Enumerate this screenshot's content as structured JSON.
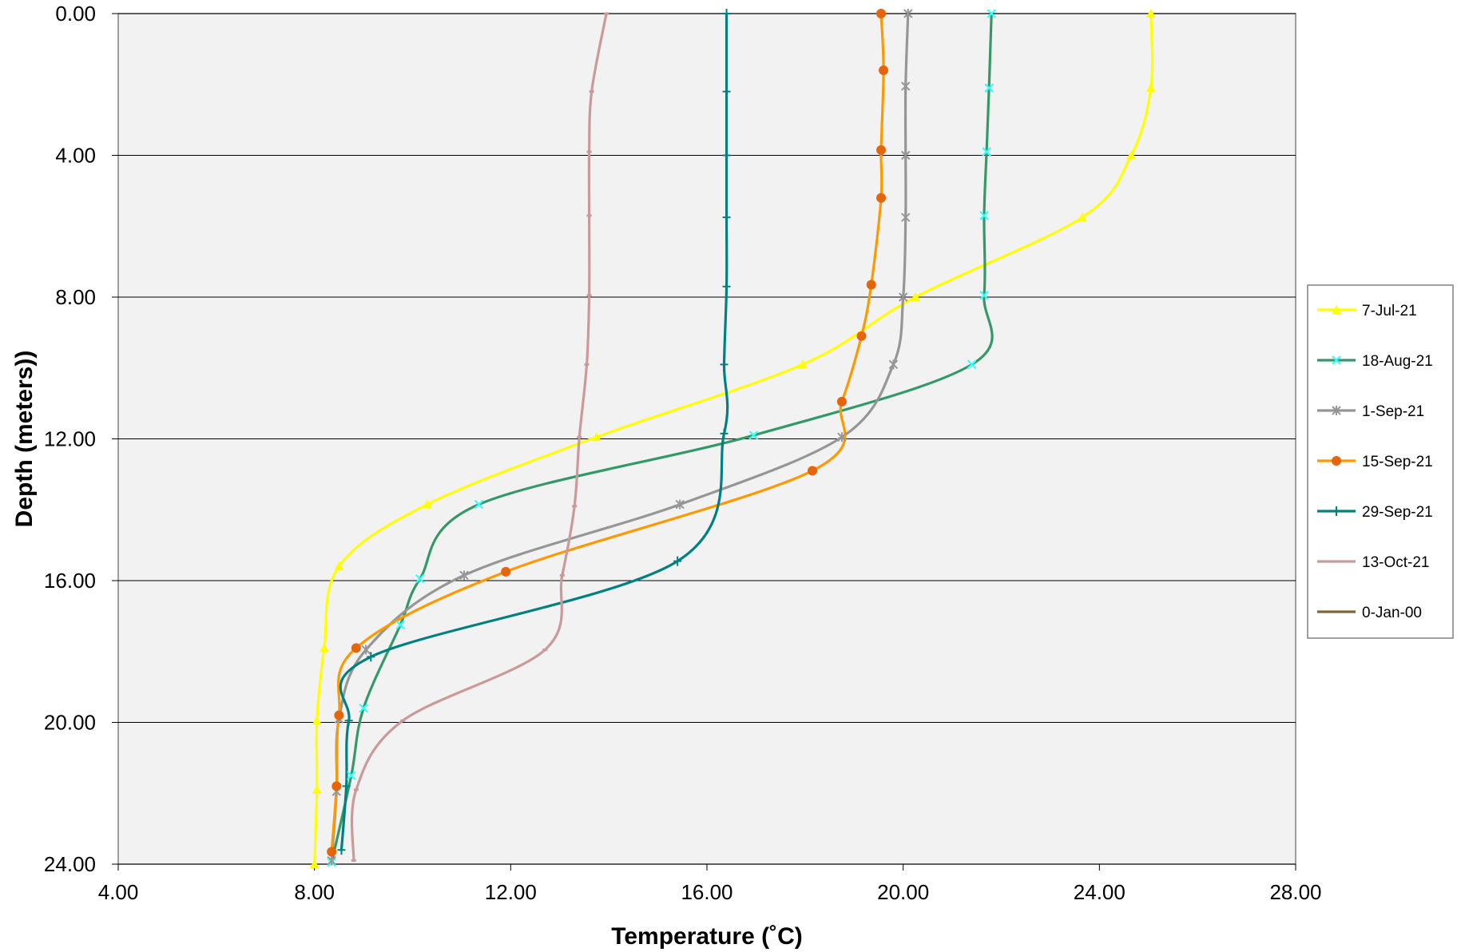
{
  "chart_data": {
    "type": "line",
    "title": "",
    "xlabel": "Temperature (˚C)",
    "ylabel": "Depth (meters))",
    "xlim": [
      4,
      28
    ],
    "ylim": [
      0,
      24
    ],
    "y_inverted": true,
    "x_ticks": [
      4,
      8,
      12,
      16,
      20,
      24,
      28
    ],
    "x_tick_labels": [
      "4.00",
      "8.00",
      "12.00",
      "16.00",
      "20.00",
      "24.00",
      "28.00"
    ],
    "y_ticks": [
      0,
      4,
      8,
      12,
      16,
      20,
      24
    ],
    "y_tick_labels": [
      "0.00",
      "4.00",
      "8.00",
      "12.00",
      "16.00",
      "20.00",
      "24.00"
    ],
    "grid": "horizontal",
    "plot_background": "#f2f2f2",
    "legend_position": "right",
    "series": [
      {
        "name": "7-Jul-21",
        "color": "#ffff00",
        "marker": "triangle",
        "marker_color": "#ffff00",
        "points": [
          [
            25.05,
            0
          ],
          [
            25.05,
            2.1
          ],
          [
            24.65,
            4
          ],
          [
            23.65,
            5.75
          ],
          [
            20.25,
            8
          ],
          [
            17.95,
            9.9
          ],
          [
            13.75,
            11.95
          ],
          [
            10.3,
            13.85
          ],
          [
            8.5,
            15.6
          ],
          [
            8.2,
            17.9
          ],
          [
            8.05,
            19.95
          ],
          [
            8.05,
            21.9
          ],
          [
            8.0,
            24.0
          ]
        ]
      },
      {
        "name": "18-Aug-21",
        "color": "#339966",
        "marker": "x",
        "marker_color": "#33ffff",
        "points": [
          [
            21.8,
            0
          ],
          [
            21.75,
            2.1
          ],
          [
            21.7,
            3.9
          ],
          [
            21.65,
            5.7
          ],
          [
            21.65,
            7.95
          ],
          [
            21.4,
            9.9
          ],
          [
            16.95,
            11.9
          ],
          [
            11.35,
            13.85
          ],
          [
            10.15,
            15.95
          ],
          [
            9.75,
            17.25
          ],
          [
            9.0,
            19.6
          ],
          [
            8.75,
            21.5
          ],
          [
            8.35,
            23.95
          ]
        ]
      },
      {
        "name": "1-Sep-21",
        "color": "#969696",
        "marker": "asterisk",
        "marker_color": "#969696",
        "points": [
          [
            20.1,
            0
          ],
          [
            20.05,
            2.05
          ],
          [
            20.05,
            4
          ],
          [
            20.05,
            5.75
          ],
          [
            20.0,
            8.0
          ],
          [
            19.8,
            9.9
          ],
          [
            18.75,
            11.95
          ],
          [
            15.45,
            13.85
          ],
          [
            11.05,
            15.85
          ],
          [
            9.05,
            17.95
          ],
          [
            8.5,
            19.9
          ],
          [
            8.45,
            21.95
          ],
          [
            8.35,
            23.9
          ]
        ]
      },
      {
        "name": "15-Sep-21",
        "color": "#ff9900",
        "marker": "circle",
        "marker_color": "#e6640a",
        "points": [
          [
            19.55,
            0
          ],
          [
            19.6,
            1.6
          ],
          [
            19.55,
            3.85
          ],
          [
            19.55,
            5.2
          ],
          [
            19.35,
            7.65
          ],
          [
            19.15,
            9.1
          ],
          [
            18.75,
            10.95
          ],
          [
            18.15,
            12.9
          ],
          [
            11.9,
            15.75
          ],
          [
            8.85,
            17.9
          ],
          [
            8.5,
            19.8
          ],
          [
            8.45,
            21.8
          ],
          [
            8.35,
            23.65
          ]
        ]
      },
      {
        "name": "29-Sep-21",
        "color": "#008080",
        "marker": "plus",
        "marker_color": "#008080",
        "points": [
          [
            16.4,
            0
          ],
          [
            16.4,
            2.2
          ],
          [
            16.4,
            4.0
          ],
          [
            16.4,
            5.75
          ],
          [
            16.4,
            7.7
          ],
          [
            16.35,
            9.9
          ],
          [
            16.35,
            11.85
          ],
          [
            15.4,
            15.45
          ],
          [
            9.15,
            18.15
          ],
          [
            8.7,
            19.95
          ],
          [
            8.65,
            21.8
          ],
          [
            8.55,
            23.6
          ]
        ]
      },
      {
        "name": "13-Oct-21",
        "color": "#cc9999",
        "marker": "dash",
        "marker_color": "#cc9999",
        "points": [
          [
            13.95,
            0
          ],
          [
            13.65,
            2.2
          ],
          [
            13.6,
            3.9
          ],
          [
            13.6,
            5.7
          ],
          [
            13.6,
            7.95
          ],
          [
            13.55,
            9.9
          ],
          [
            13.4,
            11.95
          ],
          [
            13.3,
            13.9
          ],
          [
            13.05,
            15.85
          ],
          [
            12.7,
            17.95
          ],
          [
            9.8,
            19.95
          ],
          [
            8.85,
            21.9
          ],
          [
            8.8,
            23.9
          ]
        ]
      },
      {
        "name": "0-Jan-00",
        "color": "#806633",
        "marker": "none",
        "marker_color": "#806633",
        "points": []
      }
    ]
  }
}
